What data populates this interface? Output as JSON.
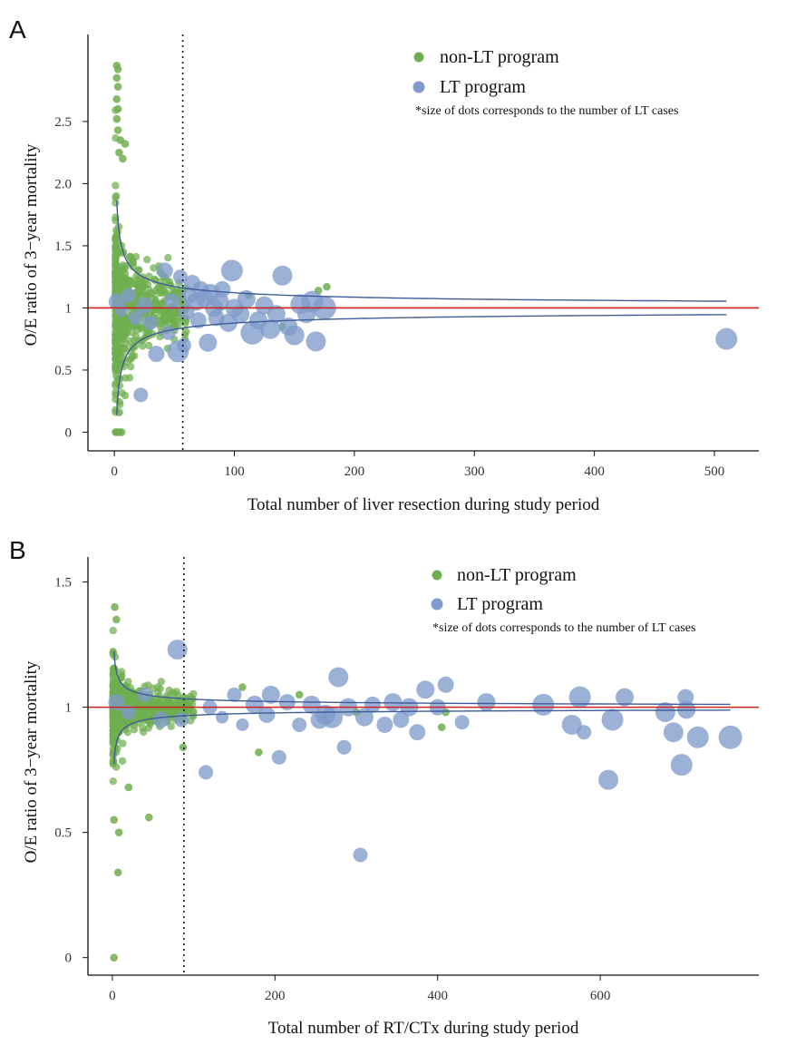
{
  "colors": {
    "non_lt": "#6fae4f",
    "lt": "#7f9bcb",
    "funnel": "#3f5c99",
    "reference": "#cc2222",
    "threshold": "#111111"
  },
  "chart_data": [
    {
      "panel": "A",
      "type": "scatter",
      "xlabel": "Total number of liver resection during study period",
      "ylabel": "O/E ratio of 3−year mortality",
      "xlim": [
        -22,
        537
      ],
      "ylim": [
        -0.15,
        3.2
      ],
      "xticks": [
        0,
        100,
        200,
        300,
        400,
        500
      ],
      "yticks": [
        0,
        0.5,
        1,
        1.5,
        2.0,
        2.5
      ],
      "ytick_labels": [
        "0",
        "0.5",
        "1",
        "1.5",
        "2.0",
        "2.5"
      ],
      "reference_line": 1,
      "threshold_x": 57,
      "funnel": {
        "k": 1.22,
        "x_start": 2,
        "x_end": 510
      },
      "legend": {
        "non_lt_label": "non-LT program",
        "lt_label": "LT program",
        "note": "*size of dots corresponds to the number of LT cases"
      },
      "non_lt_cloud": {
        "count": 540,
        "seed": 11,
        "x_max": 60,
        "scale": 0.5,
        "clip": [
          0.0,
          2.95
        ]
      },
      "series": [
        {
          "name": "non-LT program",
          "points": [
            {
              "x": 2,
              "y": 2.95
            },
            {
              "x": 3,
              "y": 2.92
            },
            {
              "x": 2,
              "y": 2.85
            },
            {
              "x": 3,
              "y": 2.78
            },
            {
              "x": 2,
              "y": 2.68
            },
            {
              "x": 3,
              "y": 2.6
            },
            {
              "x": 2,
              "y": 2.52
            },
            {
              "x": 3,
              "y": 2.43
            },
            {
              "x": 5,
              "y": 2.35
            },
            {
              "x": 9,
              "y": 2.32
            },
            {
              "x": 4,
              "y": 2.25
            },
            {
              "x": 7,
              "y": 2.2
            },
            {
              "x": 2,
              "y": 0
            },
            {
              "x": 4,
              "y": 0
            },
            {
              "x": 6,
              "y": 0
            },
            {
              "x": 4,
              "y": 0.16
            },
            {
              "x": 170,
              "y": 1.14
            },
            {
              "x": 177,
              "y": 1.17
            },
            {
              "x": 112,
              "y": 1.1
            },
            {
              "x": 140,
              "y": 0.85
            }
          ]
        },
        {
          "name": "LT program",
          "points": [
            {
              "x": 2,
              "y": 1.05,
              "size": 9
            },
            {
              "x": 6,
              "y": 0.98,
              "size": 7
            },
            {
              "x": 12,
              "y": 1.1,
              "size": 8
            },
            {
              "x": 18,
              "y": 0.92,
              "size": 8
            },
            {
              "x": 22,
              "y": 0.3,
              "size": 8
            },
            {
              "x": 25,
              "y": 1.02,
              "size": 9
            },
            {
              "x": 30,
              "y": 0.88,
              "size": 8
            },
            {
              "x": 35,
              "y": 0.63,
              "size": 9
            },
            {
              "x": 42,
              "y": 1.3,
              "size": 9
            },
            {
              "x": 45,
              "y": 0.8,
              "size": 8
            },
            {
              "x": 48,
              "y": 1.05,
              "size": 9
            },
            {
              "x": 53,
              "y": 0.65,
              "size": 12
            },
            {
              "x": 55,
              "y": 1.25,
              "size": 8
            },
            {
              "x": 58,
              "y": 0.7,
              "size": 8
            },
            {
              "x": 60,
              "y": 0.97,
              "size": 9
            },
            {
              "x": 62,
              "y": 1.1,
              "size": 9
            },
            {
              "x": 65,
              "y": 1.2,
              "size": 9
            },
            {
              "x": 68,
              "y": 1.05,
              "size": 10
            },
            {
              "x": 70,
              "y": 0.9,
              "size": 9
            },
            {
              "x": 72,
              "y": 1.15,
              "size": 9
            },
            {
              "x": 75,
              "y": 1.08,
              "size": 10
            },
            {
              "x": 78,
              "y": 0.72,
              "size": 10
            },
            {
              "x": 80,
              "y": 1.12,
              "size": 10
            },
            {
              "x": 83,
              "y": 1.0,
              "size": 10
            },
            {
              "x": 85,
              "y": 0.92,
              "size": 9
            },
            {
              "x": 88,
              "y": 1.05,
              "size": 10
            },
            {
              "x": 90,
              "y": 1.15,
              "size": 9
            },
            {
              "x": 95,
              "y": 0.88,
              "size": 10
            },
            {
              "x": 98,
              "y": 1.3,
              "size": 12
            },
            {
              "x": 100,
              "y": 1.0,
              "size": 10
            },
            {
              "x": 105,
              "y": 0.95,
              "size": 10
            },
            {
              "x": 110,
              "y": 1.07,
              "size": 10
            },
            {
              "x": 115,
              "y": 0.8,
              "size": 13
            },
            {
              "x": 120,
              "y": 0.9,
              "size": 10
            },
            {
              "x": 125,
              "y": 1.02,
              "size": 10
            },
            {
              "x": 130,
              "y": 0.83,
              "size": 11
            },
            {
              "x": 135,
              "y": 0.95,
              "size": 10
            },
            {
              "x": 140,
              "y": 1.26,
              "size": 11
            },
            {
              "x": 145,
              "y": 0.85,
              "size": 10
            },
            {
              "x": 150,
              "y": 0.78,
              "size": 11
            },
            {
              "x": 155,
              "y": 1.03,
              "size": 11
            },
            {
              "x": 160,
              "y": 0.95,
              "size": 10
            },
            {
              "x": 165,
              "y": 1.05,
              "size": 12
            },
            {
              "x": 168,
              "y": 0.73,
              "size": 11
            },
            {
              "x": 175,
              "y": 1.0,
              "size": 13
            },
            {
              "x": 510,
              "y": 0.75,
              "size": 12
            }
          ]
        }
      ]
    },
    {
      "panel": "B",
      "type": "scatter",
      "xlabel": "Total number of RT/CTx during study period",
      "ylabel": "O/E ratio of 3−year mortality",
      "xlim": [
        -30,
        795
      ],
      "ylim": [
        -0.07,
        1.6
      ],
      "xticks": [
        0,
        200,
        400,
        600
      ],
      "yticks": [
        0,
        0.5,
        1,
        1.5
      ],
      "ytick_labels": [
        "0",
        "0.5",
        "1",
        "1.5"
      ],
      "reference_line": 1,
      "threshold_x": 88,
      "funnel": {
        "k": 0.32,
        "x_start": 2,
        "x_end": 760
      },
      "legend": {
        "non_lt_label": "non-LT program",
        "lt_label": "LT program",
        "note": "*size of dots corresponds to the number of LT cases"
      },
      "non_lt_cloud": {
        "count": 560,
        "seed": 23,
        "x_max": 100,
        "scale": 0.12,
        "clip": [
          0.6,
          1.38
        ]
      },
      "series": [
        {
          "name": "non-LT program",
          "points": [
            {
              "x": 3,
              "y": 1.4
            },
            {
              "x": 5,
              "y": 1.35
            },
            {
              "x": 2,
              "y": 0.55
            },
            {
              "x": 8,
              "y": 0.5
            },
            {
              "x": 45,
              "y": 0.56
            },
            {
              "x": 7,
              "y": 0.34
            },
            {
              "x": 2,
              "y": 0
            },
            {
              "x": 20,
              "y": 0.68
            },
            {
              "x": 87,
              "y": 0.84
            },
            {
              "x": 180,
              "y": 0.82
            },
            {
              "x": 405,
              "y": 0.92
            },
            {
              "x": 410,
              "y": 0.98
            },
            {
              "x": 160,
              "y": 1.08
            },
            {
              "x": 230,
              "y": 1.05
            },
            {
              "x": 300,
              "y": 0.98
            }
          ]
        },
        {
          "name": "LT program",
          "points": [
            {
              "x": 5,
              "y": 1.02,
              "size": 9
            },
            {
              "x": 20,
              "y": 0.98,
              "size": 8
            },
            {
              "x": 40,
              "y": 1.05,
              "size": 8
            },
            {
              "x": 60,
              "y": 0.95,
              "size": 9
            },
            {
              "x": 80,
              "y": 1.23,
              "size": 11
            },
            {
              "x": 85,
              "y": 0.95,
              "size": 8
            },
            {
              "x": 115,
              "y": 0.74,
              "size": 8
            },
            {
              "x": 120,
              "y": 1.0,
              "size": 8
            },
            {
              "x": 135,
              "y": 0.96,
              "size": 7
            },
            {
              "x": 150,
              "y": 1.05,
              "size": 8
            },
            {
              "x": 160,
              "y": 0.93,
              "size": 7
            },
            {
              "x": 175,
              "y": 1.01,
              "size": 10
            },
            {
              "x": 190,
              "y": 0.97,
              "size": 9
            },
            {
              "x": 195,
              "y": 1.05,
              "size": 10
            },
            {
              "x": 205,
              "y": 0.8,
              "size": 8
            },
            {
              "x": 215,
              "y": 1.02,
              "size": 9
            },
            {
              "x": 230,
              "y": 0.93,
              "size": 8
            },
            {
              "x": 245,
              "y": 1.01,
              "size": 10
            },
            {
              "x": 255,
              "y": 0.95,
              "size": 10
            },
            {
              "x": 262,
              "y": 0.97,
              "size": 11
            },
            {
              "x": 270,
              "y": 0.96,
              "size": 12
            },
            {
              "x": 278,
              "y": 1.12,
              "size": 11
            },
            {
              "x": 285,
              "y": 0.84,
              "size": 8
            },
            {
              "x": 290,
              "y": 1.0,
              "size": 10
            },
            {
              "x": 305,
              "y": 0.41,
              "size": 8
            },
            {
              "x": 310,
              "y": 0.96,
              "size": 10
            },
            {
              "x": 320,
              "y": 1.01,
              "size": 9
            },
            {
              "x": 335,
              "y": 0.93,
              "size": 9
            },
            {
              "x": 345,
              "y": 1.02,
              "size": 10
            },
            {
              "x": 355,
              "y": 0.95,
              "size": 9
            },
            {
              "x": 365,
              "y": 1.0,
              "size": 10
            },
            {
              "x": 375,
              "y": 0.9,
              "size": 9
            },
            {
              "x": 385,
              "y": 1.07,
              "size": 10
            },
            {
              "x": 400,
              "y": 1.0,
              "size": 9
            },
            {
              "x": 410,
              "y": 1.09,
              "size": 9
            },
            {
              "x": 430,
              "y": 0.94,
              "size": 8
            },
            {
              "x": 460,
              "y": 1.02,
              "size": 10
            },
            {
              "x": 530,
              "y": 1.01,
              "size": 12
            },
            {
              "x": 565,
              "y": 0.93,
              "size": 11
            },
            {
              "x": 575,
              "y": 1.04,
              "size": 12
            },
            {
              "x": 580,
              "y": 0.9,
              "size": 8
            },
            {
              "x": 610,
              "y": 0.71,
              "size": 11
            },
            {
              "x": 615,
              "y": 0.95,
              "size": 12
            },
            {
              "x": 630,
              "y": 1.04,
              "size": 10
            },
            {
              "x": 680,
              "y": 0.98,
              "size": 11
            },
            {
              "x": 690,
              "y": 0.9,
              "size": 11
            },
            {
              "x": 700,
              "y": 0.77,
              "size": 12
            },
            {
              "x": 705,
              "y": 1.04,
              "size": 9
            },
            {
              "x": 706,
              "y": 0.99,
              "size": 10
            },
            {
              "x": 720,
              "y": 0.88,
              "size": 12
            },
            {
              "x": 760,
              "y": 0.88,
              "size": 13
            }
          ]
        }
      ]
    }
  ]
}
